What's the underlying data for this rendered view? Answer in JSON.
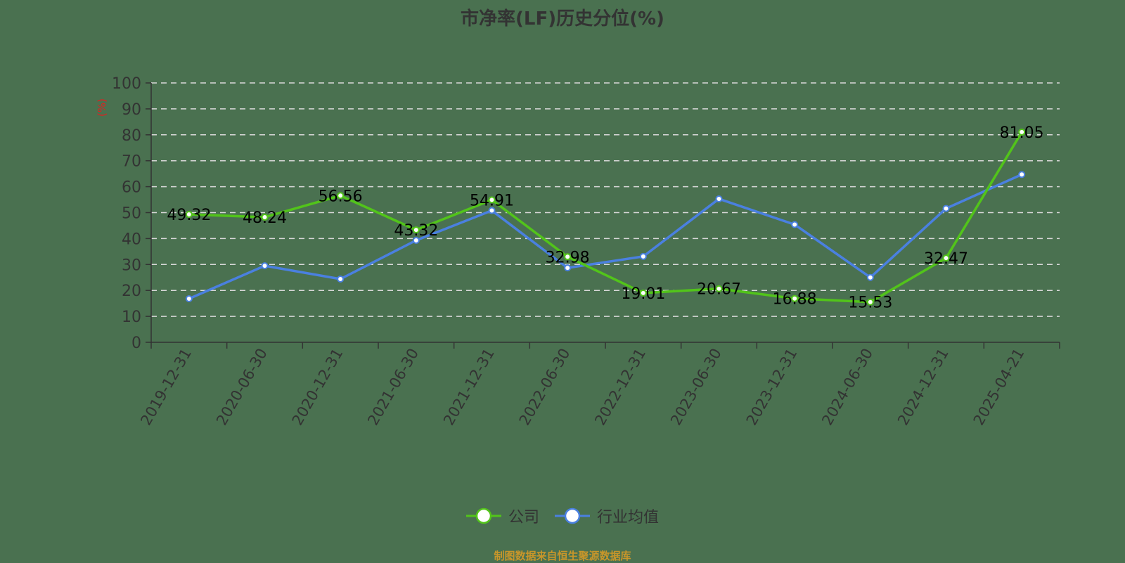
{
  "title": "市净率(LF)历史分位(%)",
  "source": "制图数据来自恒生聚源数据库",
  "y_axis": {
    "unit_label": "(%)",
    "ticks": [
      "0",
      "10",
      "20",
      "30",
      "40",
      "50",
      "60",
      "70",
      "80",
      "90",
      "100"
    ]
  },
  "legend": [
    {
      "label": "公司",
      "color": "#52c41a"
    },
    {
      "label": "行业均值",
      "color": "#4a80e0"
    }
  ],
  "chart_data": {
    "type": "line",
    "title": "市净率(LF)历史分位(%)",
    "xlabel": "",
    "ylabel": "(%)",
    "ylim": [
      0,
      100
    ],
    "grid": true,
    "legend_position": "bottom",
    "categories": [
      "2019-12-31",
      "2020-06-30",
      "2020-12-31",
      "2021-06-30",
      "2021-12-31",
      "2022-06-30",
      "2022-12-31",
      "2023-06-30",
      "2023-12-31",
      "2024-06-30",
      "2024-12-31",
      "2025-04-21"
    ],
    "series": [
      {
        "name": "公司",
        "color": "#52c41a",
        "labeled": true,
        "values": [
          49.32,
          48.24,
          56.56,
          43.32,
          54.91,
          32.98,
          19.01,
          20.67,
          16.88,
          15.53,
          32.47,
          81.05
        ]
      },
      {
        "name": "行业均值",
        "color": "#4a80e0",
        "labeled": false,
        "values": [
          16.8,
          29.5,
          24.4,
          39.3,
          50.8,
          28.7,
          33.1,
          55.3,
          45.4,
          25.0,
          51.6,
          64.7
        ]
      }
    ]
  }
}
